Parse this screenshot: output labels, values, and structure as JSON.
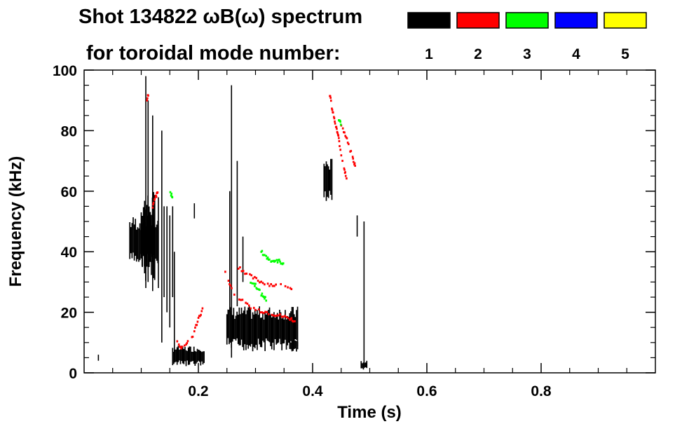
{
  "chart_data": {
    "type": "scatter",
    "title_line1": "Shot 134822 ωB(ω) spectrum",
    "title_line2": "for toroidal mode number:",
    "xlabel": "Time (s)",
    "ylabel": "Frequency (kHz)",
    "xlim": [
      0.0,
      1.0
    ],
    "ylim": [
      0,
      100
    ],
    "xticks": [
      0.2,
      0.4,
      0.6,
      0.8
    ],
    "yticks": [
      0,
      20,
      40,
      60,
      80,
      100
    ],
    "xtick_labels": [
      "0.2",
      "0.4",
      "0.6",
      "0.8"
    ],
    "ytick_labels": [
      "0",
      "20",
      "40",
      "60",
      "80",
      "100"
    ],
    "legend_placement": "top-right",
    "series": [
      {
        "name": "1",
        "color": "#000000",
        "blobs": [
          {
            "x": [
              0.08,
              0.13
            ],
            "y": [
              35,
              52
            ]
          },
          {
            "x": [
              0.1,
              0.125
            ],
            "y": [
              30,
              60
            ]
          },
          {
            "x": [
              0.155,
              0.21
            ],
            "y": [
              2,
              9
            ]
          },
          {
            "x": [
              0.25,
              0.375
            ],
            "y": [
              7,
              22
            ]
          },
          {
            "x": [
              0.36,
              0.375
            ],
            "y": [
              7,
              11
            ]
          },
          {
            "x": [
              0.42,
              0.435
            ],
            "y": [
              56,
              71
            ]
          },
          {
            "x": [
              0.485,
              0.495
            ],
            "y": [
              1,
              4
            ]
          }
        ],
        "streaks": [
          {
            "x": 0.108,
            "y": [
              28,
              98
            ]
          },
          {
            "x": 0.112,
            "y": [
              30,
              90
            ]
          },
          {
            "x": 0.12,
            "y": [
              27,
              85
            ]
          },
          {
            "x": 0.14,
            "y": [
              25,
              55
            ]
          },
          {
            "x": 0.145,
            "y": [
              20,
              55
            ]
          },
          {
            "x": 0.15,
            "y": [
              15,
              52
            ]
          },
          {
            "x": 0.136,
            "y": [
              10,
              80
            ]
          },
          {
            "x": 0.13,
            "y": [
              28,
              58
            ]
          },
          {
            "x": 0.158,
            "y": [
              4,
              40
            ]
          },
          {
            "x": 0.155,
            "y": [
              25,
              55
            ]
          },
          {
            "x": 0.193,
            "y": [
              51,
              56
            ]
          },
          {
            "x": 0.258,
            "y": [
              5,
              95
            ]
          },
          {
            "x": 0.255,
            "y": [
              20,
              60
            ]
          },
          {
            "x": 0.268,
            "y": [
              22,
              70
            ]
          },
          {
            "x": 0.278,
            "y": [
              30,
              45
            ]
          },
          {
            "x": 0.49,
            "y": [
              2,
              50
            ]
          },
          {
            "x": 0.478,
            "y": [
              45,
              52
            ]
          },
          {
            "x": 0.025,
            "y": [
              4,
              6
            ]
          }
        ]
      },
      {
        "name": "2",
        "color": "#ff0000",
        "curves": [
          {
            "x": [
              0.247,
              0.26,
              0.28,
              0.3,
              0.32,
              0.34,
              0.36,
              0.37
            ],
            "y": [
              33,
              27,
              23,
              21,
              20,
              19,
              18,
              17
            ]
          },
          {
            "x": [
              0.27,
              0.29,
              0.31,
              0.33,
              0.35,
              0.365
            ],
            "y": [
              35,
              32,
              30,
              29,
              29,
              28
            ]
          },
          {
            "x": [
              0.43,
              0.435,
              0.44,
              0.445,
              0.45,
              0.455,
              0.46
            ],
            "y": [
              92,
              86,
              82,
              78,
              72,
              68,
              63
            ]
          },
          {
            "x": [
              0.45,
              0.46,
              0.47,
              0.475
            ],
            "y": [
              82,
              77,
              71,
              68
            ]
          },
          {
            "x": [
              0.16,
              0.17,
              0.18,
              0.19,
              0.2,
              0.21
            ],
            "y": [
              12,
              8,
              10,
              12,
              18,
              22
            ]
          },
          {
            "x": [
              0.12,
              0.125,
              0.13
            ],
            "y": [
              55,
              58,
              60
            ]
          },
          {
            "x": [
              0.11,
              0.115
            ],
            "y": [
              90,
              95
            ]
          }
        ]
      },
      {
        "name": "3",
        "color": "#00ff00",
        "curves": [
          {
            "x": [
              0.31,
              0.32,
              0.33,
              0.34,
              0.35
            ],
            "y": [
              40,
              38,
              37,
              37,
              36
            ]
          },
          {
            "x": [
              0.29,
              0.3,
              0.31,
              0.32
            ],
            "y": [
              30,
              29,
              26,
              24
            ]
          },
          {
            "x": [
              0.445,
              0.45
            ],
            "y": [
              84,
              82
            ]
          },
          {
            "x": [
              0.15,
              0.155
            ],
            "y": [
              60,
              58
            ]
          }
        ]
      },
      {
        "name": "4",
        "color": "#0000ff"
      },
      {
        "name": "5",
        "color": "#ffff00"
      }
    ]
  }
}
